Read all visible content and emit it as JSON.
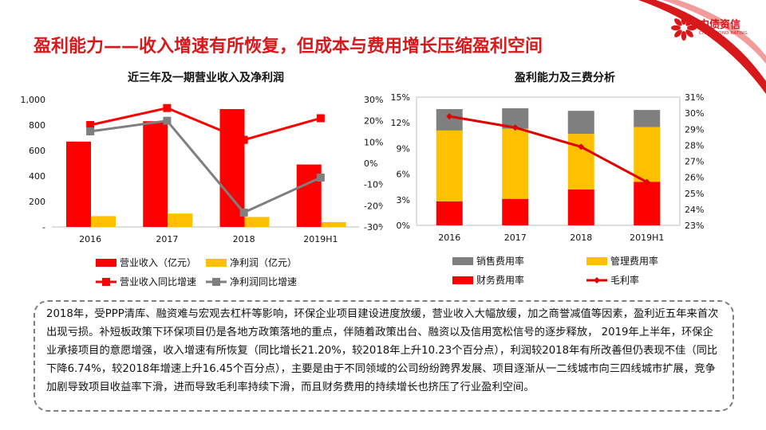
{
  "header": {
    "title": "盈利能力——收入增速有所恢复，但成本与费用增长压缩盈利空间",
    "logo_cn": "中债资信",
    "logo_en": "CHINA BOND RATING"
  },
  "colors": {
    "red": "#ff0000",
    "dark_red": "#e00000",
    "yellow": "#ffc000",
    "gray": "#808080",
    "title_red": "#d7191c"
  },
  "chart_data": [
    {
      "type": "bar",
      "title": "近三年及一期营业收入及净利润",
      "categories": [
        "2016",
        "2017",
        "2018",
        "2019H1"
      ],
      "left_axis": {
        "ylim": [
          0,
          1000
        ],
        "ticks": [
          "-",
          "200",
          "400",
          "600",
          "800",
          "1,000"
        ]
      },
      "right_axis": {
        "ylim": [
          -30,
          30
        ],
        "ticks": [
          "-30%",
          "-20%",
          "-10%",
          "0%",
          "10%",
          "20%",
          "30%"
        ]
      },
      "series": [
        {
          "name": "营业收入（亿元）",
          "kind": "bar",
          "axis": "left",
          "color": "#ff0000",
          "values": [
            670,
            830,
            925,
            490
          ]
        },
        {
          "name": "净利润（亿元）",
          "kind": "bar",
          "axis": "left",
          "color": "#ffc000",
          "values": [
            85,
            105,
            78,
            38
          ]
        },
        {
          "name": "营业收入同比增速",
          "kind": "line",
          "axis": "right",
          "color": "#ff0000",
          "values": [
            18,
            26,
            11,
            21.2
          ]
        },
        {
          "name": "净利润同比增速",
          "kind": "line",
          "axis": "right",
          "color": "#7f7f7f",
          "values": [
            15,
            20,
            -23.2,
            -6.74
          ]
        }
      ],
      "legend": "bottom"
    },
    {
      "type": "bar",
      "title": "盈利能力及三费分析",
      "categories": [
        "2016",
        "2017",
        "2018",
        "2019H1"
      ],
      "left_axis": {
        "ylim": [
          0,
          15
        ],
        "ticks": [
          "0%",
          "3%",
          "6%",
          "9%",
          "12%",
          "15%"
        ]
      },
      "right_axis": {
        "ylim": [
          23,
          31
        ],
        "ticks": [
          "23%",
          "24%",
          "25%",
          "26%",
          "27%",
          "28%",
          "29%",
          "30%",
          "31%"
        ]
      },
      "series": [
        {
          "name": "财务费用率",
          "kind": "stacked-bar",
          "axis": "left",
          "color": "#ff0000",
          "values": [
            2.8,
            3.1,
            4.2,
            5.1
          ]
        },
        {
          "name": "管理费用率",
          "kind": "stacked-bar",
          "axis": "left",
          "color": "#ffc000",
          "values": [
            8.3,
            8.2,
            6.5,
            6.4
          ]
        },
        {
          "name": "销售费用率",
          "kind": "stacked-bar",
          "axis": "left",
          "color": "#7f7f7f",
          "values": [
            2.5,
            2.4,
            2.7,
            2.0
          ]
        },
        {
          "name": "毛利率",
          "kind": "line",
          "axis": "right",
          "color": "#e00000",
          "values": [
            29.8,
            29.1,
            27.9,
            25.7
          ]
        }
      ],
      "legend_order": [
        "销售费用率",
        "管理费用率",
        "财务费用率",
        "毛利率"
      ],
      "legend": "bottom"
    }
  ],
  "summary": {
    "text": "2018年，受PPP清库、融资难与宏观去杠杆等影响，环保企业项目建设进度放缓，营业收入大幅放缓，加之商誉减值等因素，盈利近五年来首次出现亏损。补短板政策下环保项目仍是各地方政策落地的重点，伴随着政策出台、融资以及信用宽松信号的逐步释放， 2019年上半年，环保企业承接项目的意愿增强，收入增速有所恢复（同比增长21.20%，较2018年上升10.23个百分点），利润较2018年有所改善但仍表现不佳（同比下降6.74%，较2018年增速上升16.45个百分点），主要是由于不同领域的公司纷纷跨界发展、项目逐渐从一二线城市向三四线城市扩展，竞争加剧导致项目收益率下滑，进而导致毛利率持续下滑，而且财务费用的持续增长也挤压了行业盈利空间。"
  }
}
